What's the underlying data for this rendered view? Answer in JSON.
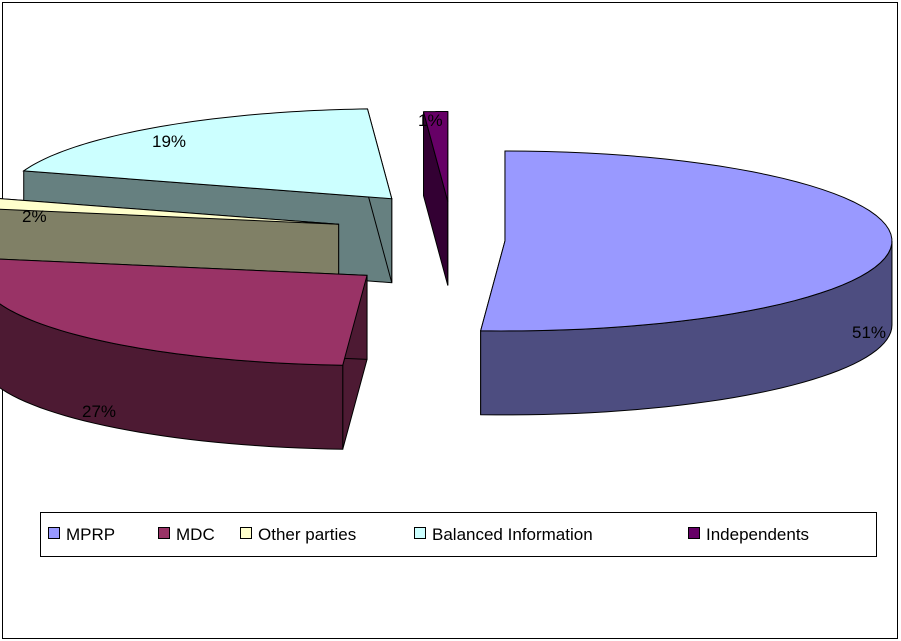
{
  "chart_data": {
    "type": "pie",
    "three_d": true,
    "exploded": true,
    "legend_position": "bottom",
    "slices": [
      {
        "name": "MPRP",
        "value": 51,
        "label": "51%",
        "color": "#9999ff",
        "side_color": "#4d4d80"
      },
      {
        "name": "MDC",
        "value": 27,
        "label": "27%",
        "color": "#993366",
        "side_color": "#4d1a33"
      },
      {
        "name": "Other parties",
        "value": 2,
        "label": "2%",
        "color": "#ffffcc",
        "side_color": "#808066"
      },
      {
        "name": "Balanced Information",
        "value": 19,
        "label": "19%",
        "color": "#ccffff",
        "side_color": "#668080"
      },
      {
        "name": "Independents",
        "value": 1,
        "label": "1%",
        "color": "#660066",
        "side_color": "#330033"
      }
    ]
  }
}
